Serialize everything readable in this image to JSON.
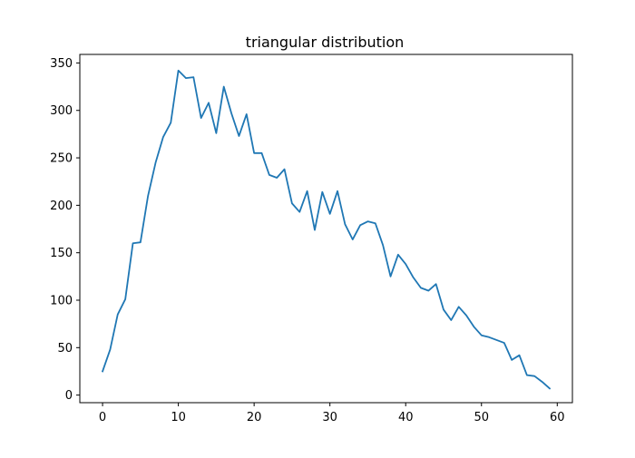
{
  "chart_data": {
    "type": "line",
    "title": "triangular distribution",
    "xlabel": "",
    "ylabel": "",
    "xlim": [
      -3,
      62
    ],
    "ylim": [
      -8,
      359
    ],
    "xticks": [
      0,
      10,
      20,
      30,
      40,
      50,
      60
    ],
    "yticks": [
      0,
      50,
      100,
      150,
      200,
      250,
      300,
      350
    ],
    "grid": false,
    "series": [
      {
        "color": "#1f77b4",
        "x": [
          0,
          1,
          2,
          3,
          4,
          5,
          6,
          7,
          8,
          9,
          10,
          11,
          12,
          13,
          14,
          15,
          16,
          17,
          18,
          19,
          20,
          21,
          22,
          23,
          24,
          25,
          26,
          27,
          28,
          29,
          30,
          31,
          32,
          33,
          34,
          35,
          36,
          37,
          38,
          39,
          40,
          41,
          42,
          43,
          44,
          45,
          46,
          47,
          48,
          49,
          50,
          51,
          52,
          53,
          54,
          55,
          56,
          57,
          58,
          59
        ],
        "values": [
          25,
          48,
          85,
          101,
          160,
          161,
          210,
          245,
          272,
          287,
          342,
          334,
          335,
          292,
          308,
          276,
          325,
          297,
          273,
          296,
          255,
          255,
          232,
          229,
          238,
          202,
          193,
          215,
          174,
          214,
          191,
          215,
          180,
          164,
          179,
          183,
          181,
          158,
          125,
          148,
          138,
          124,
          113,
          110,
          117,
          90,
          79,
          93,
          84,
          72,
          63,
          61,
          58,
          55,
          37,
          42,
          21,
          20,
          14,
          7
        ]
      }
    ]
  }
}
